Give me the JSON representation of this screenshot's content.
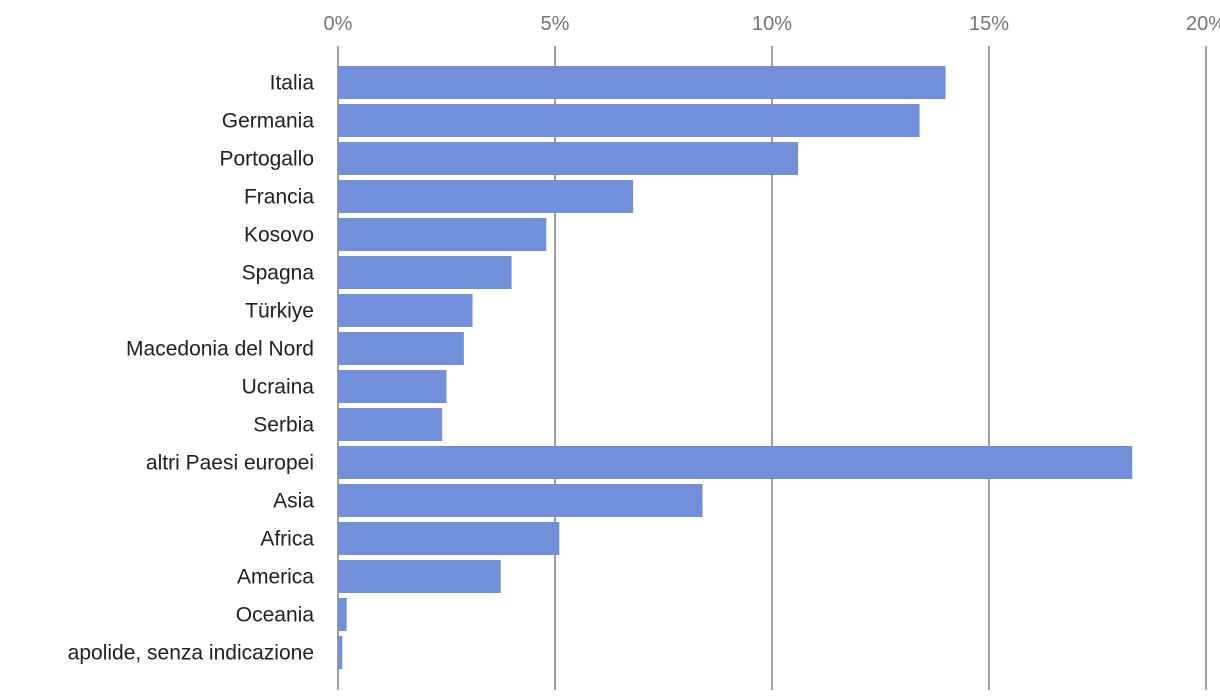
{
  "chart_data": {
    "type": "bar",
    "orientation": "horizontal",
    "categories": [
      "Italia",
      "Germania",
      "Portogallo",
      "Francia",
      "Kosovo",
      "Spagna",
      "Türkiye",
      "Macedonia del Nord",
      "Ucraina",
      "Serbia",
      "altri Paesi europei",
      "Asia",
      "Africa",
      "America",
      "Oceania",
      "apolide, senza indicazione"
    ],
    "values": [
      14.0,
      13.4,
      10.6,
      6.8,
      4.8,
      4.0,
      3.1,
      2.9,
      2.5,
      2.4,
      18.3,
      8.4,
      5.1,
      3.75,
      0.2,
      0.1
    ],
    "unit": "%",
    "xlim": [
      0,
      20
    ],
    "x_ticks": [
      0,
      5,
      10,
      15,
      20
    ],
    "x_tick_labels": [
      "0%",
      "5%",
      "10%",
      "15%",
      "20%"
    ],
    "x_axis_position": "top",
    "grid": true,
    "legend": "none",
    "bar_color": "#7190d9",
    "grid_color": "#6b6b6b"
  }
}
